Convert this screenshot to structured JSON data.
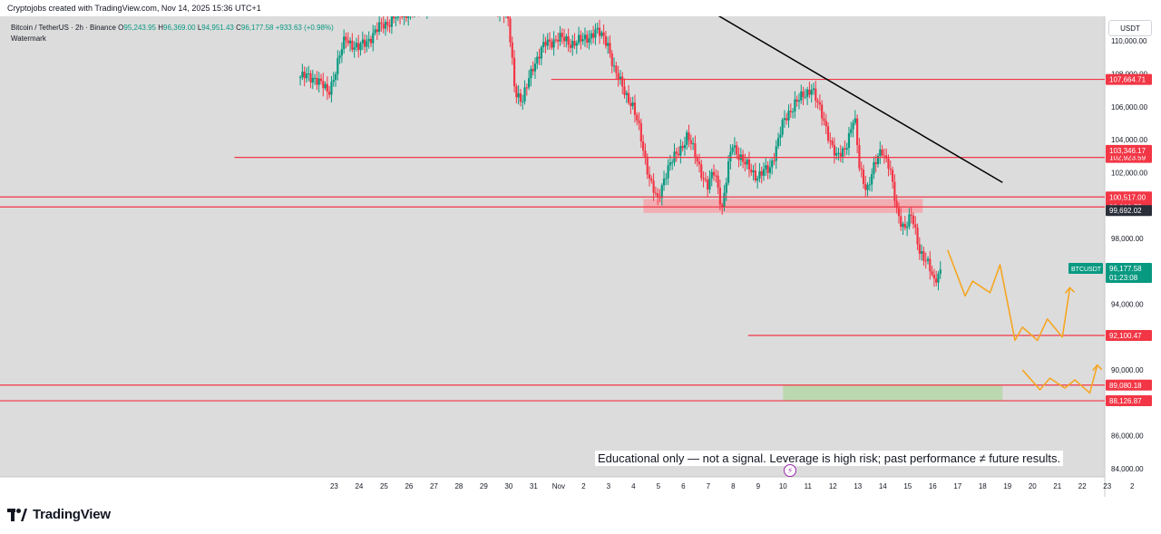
{
  "header": {
    "caption": "Cryptojobs created with TradingView.com, Nov 14, 2025 15:36 UTC+1"
  },
  "symbol_info": {
    "pair": "Bitcoin / TetherUS · 2h · Binance",
    "open_label": "O",
    "open": "95,243.95",
    "high_label": "H",
    "high": "96,369.00",
    "low_label": "L",
    "low": "94,951.43",
    "close_label": "C",
    "close": "96,177.58",
    "change": "+933.63 (+0.98%)",
    "watermark": "Watermark"
  },
  "toolbar": {
    "currency": "USDT"
  },
  "disclaimer": "Educational only — not a signal. Leverage is high risk; past performance ≠ future results.",
  "brand": {
    "name": "TradingView"
  },
  "colors": {
    "background": "#dcdcdc",
    "up": "#089981",
    "down": "#f23645",
    "level_line": "#f23645",
    "trend_line": "#000000",
    "projection": "#f5a623",
    "resistance_zone": "#f4a6ac",
    "support_zone": "#b6d7a8"
  },
  "chart_data": {
    "type": "candlestick",
    "symbol": "BTCUSDT",
    "y_range": [
      83500,
      111500
    ],
    "price_ticks": [
      84000,
      86000,
      88000,
      90000,
      92000,
      94000,
      96000,
      98000,
      100000,
      102000,
      104000,
      106000,
      108000,
      110000
    ],
    "price_tick_labels": [
      "84,000.00",
      "86,000.00",
      "88,000.00",
      "90,000.00",
      "92,000.00",
      "94,000.00",
      "96,000.00",
      "98,000.00",
      "100,000.00",
      "102,000.00",
      "104,000.00",
      "106,000.00",
      "108,000.00",
      "110,000.00"
    ],
    "x_range": [
      -21.4,
      22.9
    ],
    "date_ticks": [
      {
        "day": -8,
        "label": "23"
      },
      {
        "day": -7,
        "label": "24"
      },
      {
        "day": -6,
        "label": "25"
      },
      {
        "day": -5,
        "label": "26"
      },
      {
        "day": -4,
        "label": "27"
      },
      {
        "day": -3,
        "label": "28"
      },
      {
        "day": -2,
        "label": "29"
      },
      {
        "day": -1,
        "label": "30"
      },
      {
        "day": 0,
        "label": "31"
      },
      {
        "day": 1,
        "label": "Nov"
      },
      {
        "day": 2,
        "label": "2"
      },
      {
        "day": 3,
        "label": "3"
      },
      {
        "day": 4,
        "label": "4"
      },
      {
        "day": 5,
        "label": "5"
      },
      {
        "day": 6,
        "label": "6"
      },
      {
        "day": 7,
        "label": "7"
      },
      {
        "day": 8,
        "label": "8"
      },
      {
        "day": 9,
        "label": "9"
      },
      {
        "day": 10,
        "label": "10"
      },
      {
        "day": 11,
        "label": "11"
      },
      {
        "day": 12,
        "label": "12"
      },
      {
        "day": 13,
        "label": "13"
      },
      {
        "day": 14,
        "label": "14"
      },
      {
        "day": 15,
        "label": "15"
      },
      {
        "day": 16,
        "label": "16"
      },
      {
        "day": 17,
        "label": "17"
      },
      {
        "day": 18,
        "label": "18"
      },
      {
        "day": 19,
        "label": "19"
      },
      {
        "day": 20,
        "label": "20"
      },
      {
        "day": 21,
        "label": "21"
      },
      {
        "day": 22,
        "label": "22"
      },
      {
        "day": 23,
        "label": "23"
      },
      {
        "day": 24,
        "label": "2"
      }
    ],
    "key_points": [
      {
        "day": -8.7,
        "price": 107800
      },
      {
        "day": -8.2,
        "price": 106800
      },
      {
        "day": -7.5,
        "price": 110200
      },
      {
        "day": -7.0,
        "price": 109500
      },
      {
        "day": -6.0,
        "price": 111000
      },
      {
        "day": -5.0,
        "price": 111800
      },
      {
        "day": -4.0,
        "price": 112500
      },
      {
        "day": -2.0,
        "price": 113000
      },
      {
        "day": -1.0,
        "price": 111500
      },
      {
        "day": -0.7,
        "price": 107000
      },
      {
        "day": -0.4,
        "price": 106300
      },
      {
        "day": 0.0,
        "price": 108500
      },
      {
        "day": 0.5,
        "price": 109800
      },
      {
        "day": 1.0,
        "price": 110200
      },
      {
        "day": 1.5,
        "price": 109900
      },
      {
        "day": 2.0,
        "price": 110000
      },
      {
        "day": 2.5,
        "price": 110600
      },
      {
        "day": 3.0,
        "price": 110000
      },
      {
        "day": 3.3,
        "price": 108000
      },
      {
        "day": 3.6,
        "price": 107300
      },
      {
        "day": 4.0,
        "price": 106000
      },
      {
        "day": 4.3,
        "price": 104500
      },
      {
        "day": 4.7,
        "price": 101500
      },
      {
        "day": 5.0,
        "price": 100200
      },
      {
        "day": 5.3,
        "price": 101900
      },
      {
        "day": 5.8,
        "price": 103200
      },
      {
        "day": 6.2,
        "price": 104200
      },
      {
        "day": 6.6,
        "price": 102800
      },
      {
        "day": 7.0,
        "price": 101000
      },
      {
        "day": 7.3,
        "price": 102200
      },
      {
        "day": 7.6,
        "price": 99800
      },
      {
        "day": 8.0,
        "price": 103800
      },
      {
        "day": 8.5,
        "price": 102500
      },
      {
        "day": 9.0,
        "price": 101800
      },
      {
        "day": 9.5,
        "price": 102200
      },
      {
        "day": 10.0,
        "price": 104800
      },
      {
        "day": 10.5,
        "price": 106300
      },
      {
        "day": 10.9,
        "price": 106600
      },
      {
        "day": 11.2,
        "price": 107300
      },
      {
        "day": 11.5,
        "price": 105800
      },
      {
        "day": 11.8,
        "price": 104600
      },
      {
        "day": 12.2,
        "price": 102800
      },
      {
        "day": 12.5,
        "price": 103400
      },
      {
        "day": 12.9,
        "price": 105400
      },
      {
        "day": 13.1,
        "price": 102300
      },
      {
        "day": 13.4,
        "price": 101000
      },
      {
        "day": 13.7,
        "price": 102300
      },
      {
        "day": 14.0,
        "price": 103500
      },
      {
        "day": 14.3,
        "price": 102400
      },
      {
        "day": 14.6,
        "price": 99600
      },
      {
        "day": 14.9,
        "price": 98700
      },
      {
        "day": 15.2,
        "price": 99300
      },
      {
        "day": 15.5,
        "price": 97400
      },
      {
        "day": 15.8,
        "price": 96600
      },
      {
        "day": 16.1,
        "price": 95300
      },
      {
        "day": 16.3,
        "price": 96100
      }
    ],
    "horizontal_levels": [
      {
        "price": 107664.71,
        "from_day": 0.7,
        "label": "107,664.71"
      },
      {
        "price": 102923.59,
        "from_day": -12.0,
        "label": "102,923.59"
      },
      {
        "price": 100517.0,
        "from_day": -21.4,
        "label": "100,517.00"
      },
      {
        "price": 99909.77,
        "from_day": -21.4,
        "label": "99,909.77"
      },
      {
        "price": 92100.47,
        "from_day": 8.6,
        "label": "92,100.47"
      },
      {
        "price": 89080.18,
        "from_day": -21.4,
        "label": "89,080.18"
      },
      {
        "price": 88126.87,
        "from_day": -21.4,
        "label": "88,126.87"
      }
    ],
    "price_labels": [
      {
        "price": 103346.17,
        "label": "103,346.17",
        "style": "red"
      },
      {
        "price": 99692.02,
        "label": "99,692.02",
        "style": "dark"
      }
    ],
    "current_price": {
      "symbol": "BTCUSDT",
      "price": 96177.58,
      "label": "96,177.58",
      "countdown": "01:23:08"
    },
    "trend_line": {
      "from": {
        "day": 7.0,
        "price": 111900
      },
      "to": {
        "day": 18.8,
        "price": 101400
      }
    },
    "zones": [
      {
        "name": "resistance",
        "from_day": 4.4,
        "to_day": 15.6,
        "price_low": 99550,
        "price_high": 100400
      },
      {
        "name": "support",
        "from_day": 10.0,
        "to_day": 18.8,
        "price_low": 88126.87,
        "price_high": 89080.18
      }
    ],
    "projection_main": [
      {
        "day": 16.6,
        "price": 97300
      },
      {
        "day": 17.3,
        "price": 94500
      },
      {
        "day": 17.6,
        "price": 95400
      },
      {
        "day": 18.3,
        "price": 94700
      },
      {
        "day": 18.7,
        "price": 96400
      },
      {
        "day": 19.3,
        "price": 91800
      },
      {
        "day": 19.6,
        "price": 92600
      },
      {
        "day": 20.2,
        "price": 91800
      },
      {
        "day": 20.6,
        "price": 93100
      },
      {
        "day": 21.2,
        "price": 92000
      },
      {
        "day": 21.5,
        "price": 95000
      }
    ],
    "projection_main_arrow": {
      "day": 21.5,
      "price": 95000
    },
    "projection_secondary": [
      {
        "day": 19.6,
        "price": 90000
      },
      {
        "day": 20.3,
        "price": 88800
      },
      {
        "day": 20.7,
        "price": 89500
      },
      {
        "day": 21.3,
        "price": 88900
      },
      {
        "day": 21.7,
        "price": 89400
      },
      {
        "day": 22.3,
        "price": 88600
      },
      {
        "day": 22.6,
        "price": 90300
      }
    ],
    "projection_secondary_arrow": {
      "day": 22.6,
      "price": 90300
    }
  }
}
